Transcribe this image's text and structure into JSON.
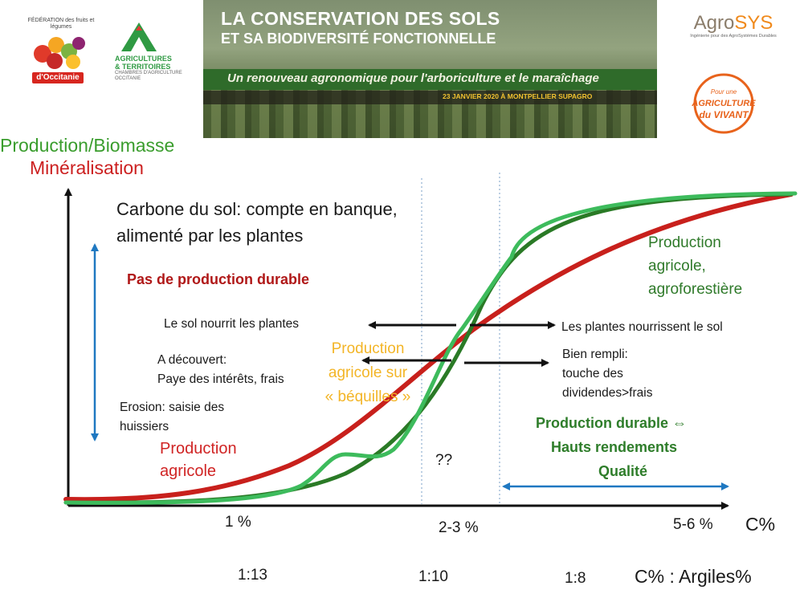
{
  "header": {
    "logo_federation": {
      "top_text": "FÉDÉRATION des fruits et légumes",
      "region": "d'Occitanie"
    },
    "logo_chambre": {
      "line1": "AGRICULTURES",
      "line2": "& TERRITOIRES",
      "line3": "CHAMBRES D'AGRICULTURE OCCITANIE"
    },
    "banner": {
      "title_line1": "LA CONSERVATION DES SOLS",
      "title_line2": "ET SA BIODIVERSITÉ FONCTIONNELLE",
      "subtitle": "Un renouveau agronomique pour l'arboriculture et le maraîchage",
      "date": "23 JANVIER 2020 À MONTPELLIER SUPAGRO"
    },
    "logo_agrosys": {
      "name_a": "Agro",
      "name_b": "SYS",
      "tagline": "Ingénierie pour des AgroSystèmes Durables"
    },
    "logo_vivant": {
      "line1": "Pour une",
      "line2": "AGRICULTURE",
      "line3": "du VIVANT"
    }
  },
  "chart": {
    "ylabel_production": "Production/Biomasse",
    "ylabel_mineral": "Minéralisation",
    "carbone_line1": "Carbone du sol: compte en banque,",
    "carbone_line2": "alimenté par les plantes",
    "pas_production": "Pas de production durable",
    "sol_nourrit": "Le sol nourrit les plantes",
    "decouvert_line1": "A découvert:",
    "decouvert_line2": "Paye des intérêts, frais",
    "erosion_line1": "Erosion: saisie des",
    "erosion_line2": "huissiers",
    "bequilles_line1": "Production",
    "bequilles_line2": "agricole sur",
    "bequilles_line3": "« béquilles »",
    "plantes_nourrissent": "Les plantes nourrissent le sol",
    "bien_rempli_line1": "Bien rempli:",
    "bien_rempli_line2": "touche des",
    "bien_rempli_line3": "dividendes>frais",
    "agroforestiere_line1": "Production",
    "agroforestiere_line2": "agricole,",
    "agroforestiere_line3": "agroforestière",
    "durable_line1": "Production durable ⇔",
    "durable_line2": "Hauts rendements",
    "durable_line3": "Qualité",
    "prod_agricole_line1": "Production",
    "prod_agricole_line2": "agricole",
    "question": "??",
    "tick_1": "1 %",
    "tick_2": "2-3 %",
    "tick_3": "5-6 %",
    "xlabel": "C%",
    "ratio_1": "1:13",
    "ratio_2": "1:10",
    "ratio_3": "1:8",
    "ratio_label": "C% : Argiles%"
  },
  "colors": {
    "mineralisation_curve": "#c8201c",
    "production_curve": "#2a7a26",
    "bequilles_curve": "#3dbb5c",
    "arrow_blue": "#1f78c1",
    "orange_text": "#f3b527"
  }
}
